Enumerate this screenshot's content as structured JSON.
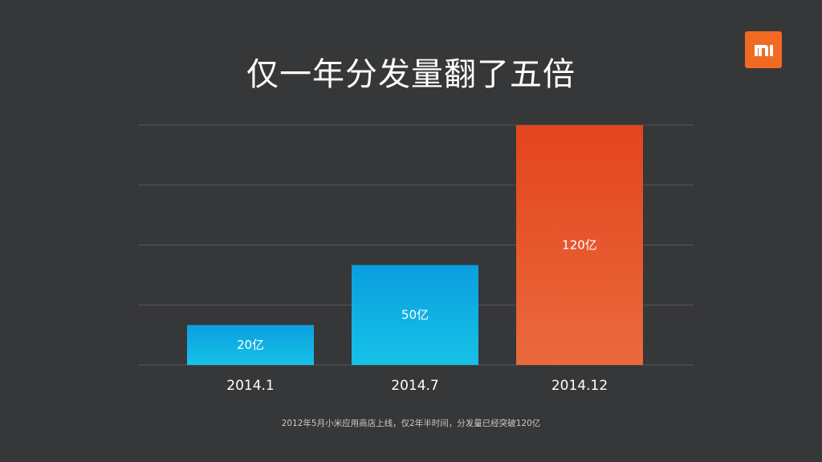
{
  "slide": {
    "title": "仅一年分发量翻了五倍",
    "footnote": "2012年5月小米应用商店上线，仅2年半时间，分发量已经突破120亿",
    "logo_icon": "mi-logo-icon",
    "colors": {
      "background": "#363739",
      "logo": "#f26a21",
      "grid": "#55575a"
    }
  },
  "chart_data": {
    "type": "bar",
    "title": "仅一年分发量翻了五倍",
    "categories": [
      "2014.1",
      "2014.7",
      "2014.12"
    ],
    "values": [
      20,
      50,
      120
    ],
    "unit": "亿",
    "data_labels": [
      "20亿",
      "50亿",
      "120亿"
    ],
    "ylim": [
      0,
      120
    ],
    "gridlines": [
      0,
      30,
      60,
      90,
      120
    ],
    "grid": true,
    "bar_colors": [
      {
        "top": "#0a9ee0",
        "bottom": "#16c2e6"
      },
      {
        "top": "#0a9ee0",
        "bottom": "#16c2e6"
      },
      {
        "top": "#e3441f",
        "bottom": "#ea6a3c"
      }
    ]
  }
}
